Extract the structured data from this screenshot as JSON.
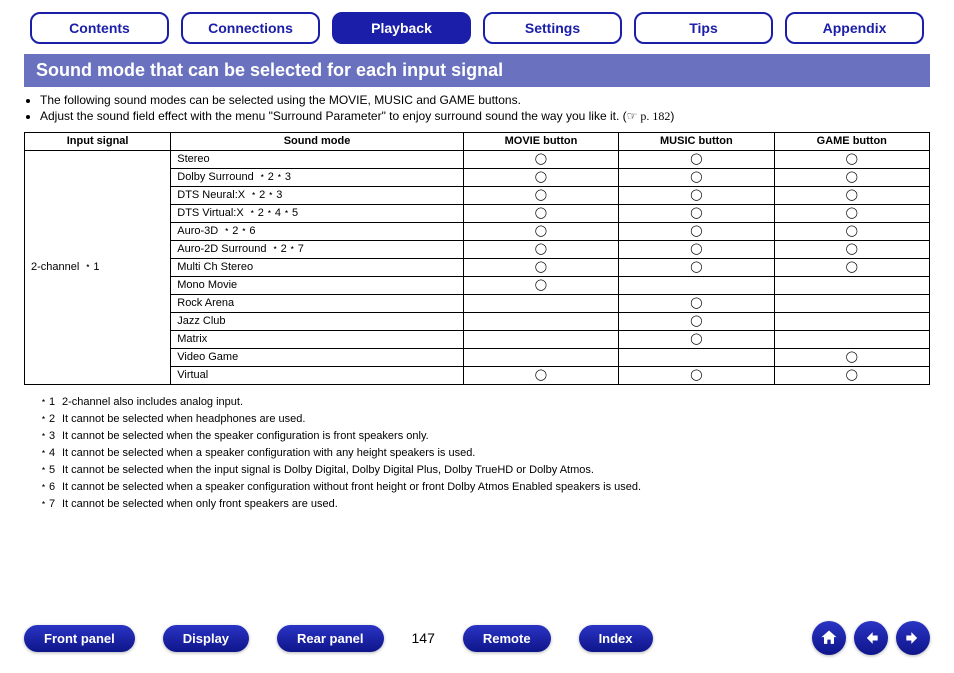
{
  "tabs": {
    "contents": "Contents",
    "connections": "Connections",
    "playback": "Playback",
    "settings": "Settings",
    "tips": "Tips",
    "appendix": "Appendix",
    "active_index": 2
  },
  "heading": "Sound mode that can be selected for each input signal",
  "bullets": {
    "b1": "The following sound modes can be selected using the MOVIE, MUSIC and GAME buttons.",
    "b2_pre": "Adjust the sound field effect with the menu \"Surround Parameter\" to enjoy surround sound the way you like it.  (",
    "b2_ref": "☞ p. 182",
    "b2_post": ")"
  },
  "table": {
    "headers": {
      "input": "Input signal",
      "mode": "Sound mode",
      "movie": "MOVIE button",
      "music": "MUSIC button",
      "game": "GAME button"
    },
    "input_signal": "2-channel ﹡1",
    "circle": "◯",
    "rows": [
      {
        "mode": "Stereo",
        "movie": true,
        "music": true,
        "game": true
      },
      {
        "mode": "Dolby Surround ﹡2﹡3",
        "movie": true,
        "music": true,
        "game": true
      },
      {
        "mode": "DTS Neural:X ﹡2﹡3",
        "movie": true,
        "music": true,
        "game": true
      },
      {
        "mode": "DTS Virtual:X ﹡2﹡4﹡5",
        "movie": true,
        "music": true,
        "game": true
      },
      {
        "mode": "Auro-3D ﹡2﹡6",
        "movie": true,
        "music": true,
        "game": true
      },
      {
        "mode": "Auro-2D Surround ﹡2﹡7",
        "movie": true,
        "music": true,
        "game": true
      },
      {
        "mode": "Multi Ch Stereo",
        "movie": true,
        "music": true,
        "game": true
      },
      {
        "mode": "Mono Movie",
        "movie": true,
        "music": false,
        "game": false
      },
      {
        "mode": "Rock Arena",
        "movie": false,
        "music": true,
        "game": false
      },
      {
        "mode": "Jazz Club",
        "movie": false,
        "music": true,
        "game": false
      },
      {
        "mode": "Matrix",
        "movie": false,
        "music": true,
        "game": false
      },
      {
        "mode": "Video Game",
        "movie": false,
        "music": false,
        "game": true
      },
      {
        "mode": "Virtual",
        "movie": true,
        "music": true,
        "game": true
      }
    ]
  },
  "footnotes": {
    "f1": {
      "sym": "﹡1",
      "txt": "2-channel also includes analog input."
    },
    "f2": {
      "sym": "﹡2",
      "txt": "It cannot be selected when headphones are used."
    },
    "f3": {
      "sym": "﹡3",
      "txt": "It cannot be selected when the speaker configuration is front speakers only."
    },
    "f4": {
      "sym": "﹡4",
      "txt": "It cannot be selected when a speaker configuration with any height speakers is used."
    },
    "f5": {
      "sym": "﹡5",
      "txt": "It cannot be selected when the input signal is Dolby Digital, Dolby Digital Plus, Dolby TrueHD or Dolby Atmos."
    },
    "f6": {
      "sym": "﹡6",
      "txt": "It cannot be selected when a speaker configuration without front height or front Dolby Atmos Enabled speakers is used."
    },
    "f7": {
      "sym": "﹡7",
      "txt": "It cannot be selected when only front speakers are used."
    }
  },
  "bottom": {
    "front": "Front panel",
    "display": "Display",
    "rear": "Rear panel",
    "page": "147",
    "remote": "Remote",
    "index": "Index"
  },
  "colors": {
    "accent": "#1a1ea8",
    "heading_bg": "#6a72bf"
  }
}
